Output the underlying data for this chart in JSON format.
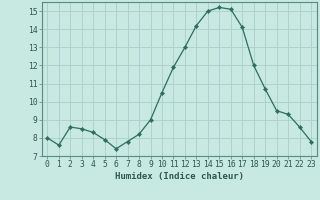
{
  "x": [
    0,
    1,
    2,
    3,
    4,
    5,
    6,
    7,
    8,
    9,
    10,
    11,
    12,
    13,
    14,
    15,
    16,
    17,
    18,
    19,
    20,
    21,
    22,
    23
  ],
  "y": [
    8.0,
    7.6,
    8.6,
    8.5,
    8.3,
    7.9,
    7.4,
    7.8,
    8.2,
    9.0,
    10.5,
    11.9,
    13.0,
    14.2,
    15.0,
    15.2,
    15.1,
    14.1,
    12.0,
    10.7,
    9.5,
    9.3,
    8.6,
    7.8
  ],
  "line_color": "#2d6e5e",
  "marker": "D",
  "marker_size": 2.2,
  "bg_color": "#c8e8e2",
  "grid_major_color": "#aad0c8",
  "grid_minor_color": "#bcddd8",
  "xlabel": "Humidex (Indice chaleur)",
  "ylim": [
    7,
    15.5
  ],
  "yticks": [
    7,
    8,
    9,
    10,
    11,
    12,
    13,
    14,
    15
  ],
  "xticks": [
    0,
    1,
    2,
    3,
    4,
    5,
    6,
    7,
    8,
    9,
    10,
    11,
    12,
    13,
    14,
    15,
    16,
    17,
    18,
    19,
    20,
    21,
    22,
    23
  ],
  "label_fontsize": 6.5,
  "tick_fontsize": 5.8,
  "tick_color": "#2d5a50",
  "spine_color": "#5a8a80"
}
